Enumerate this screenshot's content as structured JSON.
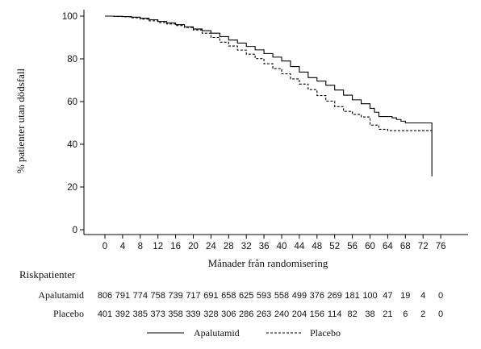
{
  "chart_data": {
    "type": "line",
    "ylabel": "% patienter utan dödsfall",
    "xlabel": "Månader från randomisering",
    "xlim": [
      -2,
      78
    ],
    "ylim": [
      0,
      100
    ],
    "xticks": [
      0,
      4,
      8,
      12,
      16,
      20,
      24,
      28,
      32,
      36,
      40,
      44,
      48,
      52,
      56,
      60,
      64,
      68,
      72,
      76
    ],
    "yticks": [
      0,
      20,
      40,
      60,
      80,
      100
    ],
    "grid": false,
    "series": [
      {
        "name": "Apalutamid",
        "style": "solid",
        "color": "#000000",
        "x": [
          0,
          2,
          4,
          6,
          8,
          10,
          12,
          14,
          16,
          18,
          20,
          22,
          24,
          26,
          28,
          30,
          32,
          34,
          36,
          38,
          40,
          42,
          44,
          46,
          48,
          50,
          52,
          54,
          56,
          58,
          60,
          61,
          62,
          63,
          64,
          65,
          66,
          67,
          68,
          70,
          72,
          74,
          74
        ],
        "y": [
          100,
          99.9,
          99.8,
          99.5,
          99,
          98.3,
          97.5,
          96.8,
          96,
          95,
          94,
          93.2,
          92,
          90.4,
          88.8,
          87.4,
          85.8,
          84.2,
          82.5,
          80.8,
          79,
          76.4,
          73.8,
          71.2,
          69.6,
          67.6,
          65.4,
          63,
          60.8,
          59,
          56.8,
          55,
          53,
          53,
          53,
          52.4,
          51.6,
          50.8,
          50,
          50,
          50,
          50,
          25
        ]
      },
      {
        "name": "Placebo",
        "style": "dashed",
        "color": "#000000",
        "x": [
          0,
          2,
          4,
          6,
          8,
          10,
          12,
          14,
          16,
          18,
          20,
          22,
          24,
          26,
          28,
          30,
          32,
          34,
          36,
          38,
          40,
          42,
          44,
          46,
          48,
          50,
          52,
          54,
          56,
          58,
          60,
          62,
          64,
          66,
          68,
          70,
          72,
          74
        ],
        "y": [
          100,
          99.9,
          99.7,
          99.2,
          98.6,
          97.8,
          97,
          96.3,
          95.6,
          94.7,
          93.5,
          92,
          90,
          87.8,
          86,
          84.1,
          82.2,
          80.1,
          77.7,
          75.4,
          73,
          70.6,
          68.2,
          65.6,
          62.8,
          60.2,
          57.6,
          55.4,
          54,
          52.8,
          49,
          47,
          46.4,
          46.4,
          46.4,
          46.4,
          46.4,
          46.4
        ]
      }
    ],
    "risk_table": {
      "title": "Riskpatienter",
      "time_points": [
        0,
        4,
        8,
        12,
        16,
        20,
        24,
        28,
        32,
        36,
        40,
        44,
        48,
        52,
        56,
        60,
        64,
        68,
        72,
        76
      ],
      "rows": [
        {
          "label": "Apalutamid",
          "values": [
            "806",
            "791",
            "774",
            "758",
            "739",
            "717",
            "691",
            "658",
            "625",
            "593",
            "558",
            "499",
            "376",
            "269",
            "181",
            "100",
            "47",
            "19",
            "4",
            "0"
          ]
        },
        {
          "label": "Placebo",
          "values": [
            "401",
            "392",
            "385",
            "373",
            "358",
            "339",
            "328",
            "306",
            "286",
            "263",
            "240",
            "204",
            "156",
            "114",
            "82",
            "38",
            "21",
            "6",
            "2",
            "0"
          ]
        }
      ]
    },
    "legend": {
      "placement": "bottom-center",
      "entries": [
        {
          "label": "Apalutamid",
          "style": "solid"
        },
        {
          "label": "Placebo",
          "style": "dashed"
        }
      ]
    }
  }
}
